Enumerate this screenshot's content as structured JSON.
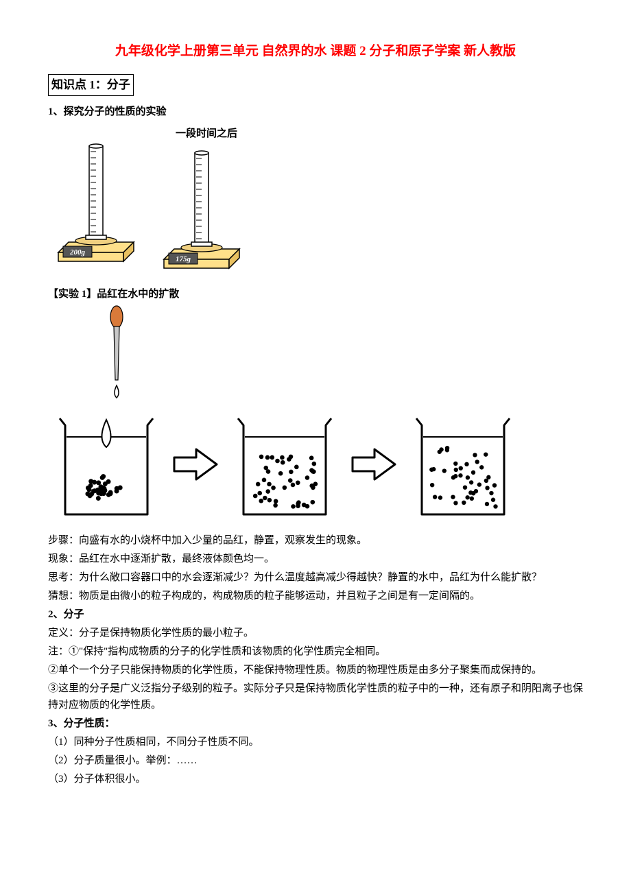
{
  "title": "九年级化学上册第三单元 自然界的水 课题 2 分子和原子学案 新人教版",
  "section1": {
    "heading": "知识点 1：分子",
    "item1": "1、探究分子的性质的实验",
    "exp1_label": "【实验 1】品红在水中的扩散",
    "steps_label": "步骤：向盛有水的小烧杯中加入少量的品红，静置，观察发生的现象。",
    "phenom": "现象：品红在水中逐渐扩散，最终液体颜色均一。",
    "think": "思考：为什么敞口容器口中的水会逐渐减少？为什么温度越高减少得越快？静置的水中，品红为什么能扩散？",
    "guess": "猜想：物质是由微小的粒子构成的，构成物质的粒子能够运动，并且粒子之间是有一定间隔的。",
    "item2": "2、分子",
    "def": "定义：分子是保持物质化学性质的最小粒子。",
    "note1": "注：①\"保持\"指构成物质的分子的化学性质和该物质的化学性质完全相同。",
    "note2": "②单个一个分子只能保持物质的化学性质，不能保持物理性质。物质的物理性质是由多分子聚集而成保持的。",
    "note3": "③这里的分子是广义泛指分子级别的粒子。实际分子只是保持物质化学性质的粒子中的一种，还有原子和阴阳离子也保持对应物质的化学性质。",
    "item3": "3、分子性质：",
    "p1": "（1）同种分子性质相同，不同分子性质不同。",
    "p2": "（2）分子质量很小。举例：……",
    "p3": "（3）分子体积很小。"
  },
  "scale_fig": {
    "label_after": "一段时间之后",
    "reading1": "200g",
    "reading2": "175g",
    "scale_body": "#ffe08a",
    "scale_edge": "#000000",
    "display_bg": "#555555",
    "display_fg": "#ffffff",
    "cylinder_stroke": "#000000"
  },
  "beaker_fig": {
    "stroke": "#000000",
    "stroke_w": 3,
    "arrow_fill": "#ffffff",
    "arrow_stroke": "#000000",
    "dropper_bulb": "#d97a3a",
    "dropper_tube": "#c9c9c9"
  }
}
